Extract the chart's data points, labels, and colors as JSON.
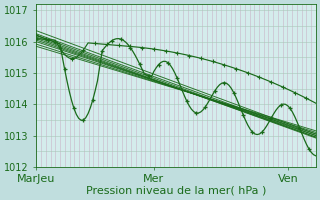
{
  "background_color": "#c0dede",
  "plot_bg_color": "#d4ecec",
  "grid_color_v": "#c8b4c8",
  "grid_color_h": "#a8c8b8",
  "line_color": "#1a6b1a",
  "marker_color": "#1a6b1a",
  "xlabel": "Pression niveau de la mer( hPa )",
  "ylim": [
    1012,
    1017.2
  ],
  "yticks": [
    1012,
    1013,
    1014,
    1015,
    1016,
    1017
  ],
  "xtick_labels": [
    "MarJeu",
    "Mer",
    "Ven"
  ],
  "xtick_positions": [
    0.0,
    0.42,
    0.9
  ],
  "xlabel_fontsize": 8,
  "ylabel_fontsize": 7,
  "n_points": 120
}
